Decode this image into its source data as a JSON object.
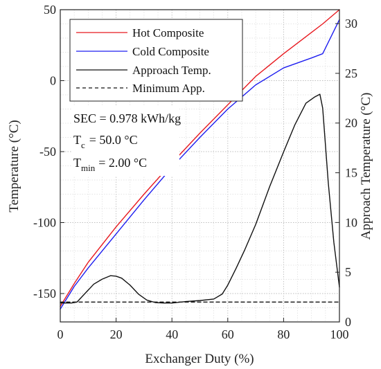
{
  "chart_data": {
    "type": "line",
    "xlabel": "Exchanger Duty (%)",
    "ylabel_left": "Temperature (°C)",
    "ylabel_right": "Approach Temperature (°C)",
    "xlim": [
      0,
      100
    ],
    "ylim_left": [
      -170,
      50
    ],
    "ylim_right": [
      0,
      31.4
    ],
    "x_ticks": [
      0,
      20,
      40,
      60,
      80,
      100
    ],
    "y_left_ticks": [
      -150,
      -100,
      -50,
      0,
      50
    ],
    "y_right_ticks": [
      0,
      5,
      10,
      15,
      20,
      25,
      30
    ],
    "grid": true,
    "legend_position": "top-left",
    "legend": [
      "Hot Composite",
      "Cold Composite",
      "Approach Temp.",
      "Minimum App."
    ],
    "annotations": {
      "sec_line": "SEC = 0.978 kWh/kg",
      "tc_main": "T",
      "tc_sub": "c",
      "tc_value": "=  50.0 °C",
      "tmin_main": "T",
      "tmin_sub": "min",
      "tmin_value": "=  2.00 °C"
    },
    "series": [
      {
        "name": "Hot Composite",
        "axis": "left",
        "color": "#e8191f",
        "style": "solid",
        "x": [
          0,
          5,
          10,
          20,
          30,
          40,
          50,
          60,
          70,
          80,
          90,
          94,
          100
        ],
        "y": [
          -159,
          -143,
          -128,
          -103,
          -80,
          -58,
          -37,
          -17,
          3,
          19,
          34,
          40,
          50
        ]
      },
      {
        "name": "Cold Composite",
        "axis": "left",
        "color": "#1d1df0",
        "style": "solid",
        "x": [
          0,
          5,
          10,
          20,
          30,
          40,
          50,
          60,
          70,
          80,
          90,
          94,
          100
        ],
        "y": [
          -161,
          -145,
          -132,
          -108,
          -84,
          -61,
          -40,
          -20,
          -3,
          9,
          16,
          19,
          43
        ]
      },
      {
        "name": "Approach Temp.",
        "axis": "right",
        "color": "#111111",
        "style": "solid",
        "x": [
          0,
          2,
          4,
          6,
          8,
          10,
          12,
          15,
          18,
          20,
          22,
          25,
          28,
          31,
          34,
          37,
          40,
          45,
          50,
          55,
          58,
          60,
          63,
          66,
          70,
          75,
          80,
          84,
          88,
          91,
          93,
          94,
          96,
          98,
          100
        ],
        "y": [
          1.9,
          1.9,
          1.9,
          2.0,
          2.6,
          3.2,
          3.8,
          4.3,
          4.65,
          4.6,
          4.4,
          3.7,
          2.8,
          2.2,
          1.95,
          1.9,
          1.9,
          2.05,
          2.15,
          2.3,
          2.8,
          3.7,
          5.4,
          7.2,
          9.8,
          13.6,
          17.1,
          19.8,
          22.0,
          22.6,
          22.9,
          21.5,
          14.0,
          8.0,
          3.5
        ]
      },
      {
        "name": "Minimum App.",
        "axis": "right",
        "color": "#111111",
        "style": "dashed",
        "x": [
          0,
          100
        ],
        "y": [
          2.0,
          2.0
        ]
      }
    ]
  }
}
